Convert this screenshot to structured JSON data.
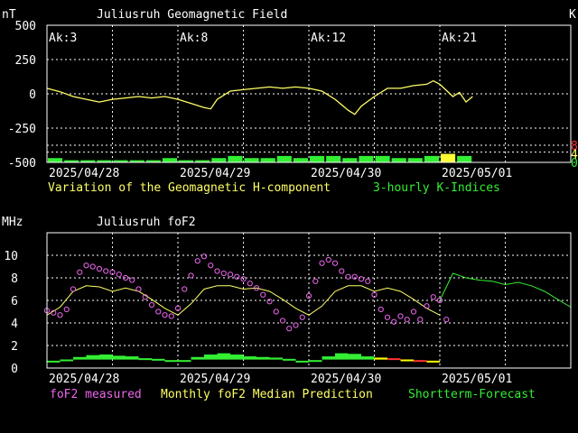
{
  "colors": {
    "background": "#000000",
    "frame": "#ffffff",
    "grid": "#ffffff",
    "h_component": "#ffff66",
    "k_normal": "#33ee33",
    "k_yellow": "#ffff33",
    "k_scale_8": "#ff3333",
    "k_scale_4": "#ffff66",
    "k_scale_0": "#33ee33",
    "fof2_measured": "#ee66ee",
    "median": "#ffff66",
    "forecast": "#33ee33",
    "quality_yellow": "#ffff00",
    "quality_red": "#ff3333"
  },
  "chart_data": [
    {
      "type": "line",
      "title": "Juliusruh Geomagnetic Field",
      "ylabel": "nT",
      "ylim": [
        -500,
        500
      ],
      "yticks": [
        "500",
        "250",
        "0",
        "-250",
        "-500"
      ],
      "y2ticks": [
        {
          "label": "8",
          "value": 8,
          "color": "#ff3333"
        },
        {
          "label": "4",
          "value": 4,
          "color": "#ffff66"
        },
        {
          "label": "0",
          "value": 0,
          "color": "#33ee33"
        }
      ],
      "y2_corner_label": "K",
      "xlim": [
        0,
        4
      ],
      "xticks": [
        {
          "label": "2025/04/28",
          "x": 0
        },
        {
          "label": "2025/04/29",
          "x": 1
        },
        {
          "label": "2025/04/30",
          "x": 2
        },
        {
          "label": "2025/05/01",
          "x": 3
        }
      ],
      "ak": [
        {
          "label": "Ak:3",
          "x": 0
        },
        {
          "label": "Ak:8",
          "x": 1
        },
        {
          "label": "Ak:12",
          "x": 2
        },
        {
          "label": "Ak:21",
          "x": 3
        }
      ],
      "legend": [
        {
          "text": "Variation of the Geomagnetic H-component",
          "color": "#ffff66"
        },
        {
          "text": "3-hourly K-Indices",
          "color": "#33ee33"
        }
      ],
      "series": [
        {
          "name": "Variation of the Geomagnetic H-component",
          "x": [
            0.0,
            0.1,
            0.2,
            0.3,
            0.4,
            0.5,
            0.6,
            0.7,
            0.8,
            0.9,
            1.0,
            1.1,
            1.2,
            1.25,
            1.3,
            1.4,
            1.5,
            1.6,
            1.7,
            1.8,
            1.9,
            2.0,
            2.1,
            2.2,
            2.3,
            2.35,
            2.4,
            2.5,
            2.6,
            2.7,
            2.8,
            2.9,
            2.95,
            3.0,
            3.1,
            3.15,
            3.2,
            3.25
          ],
          "y": [
            40,
            15,
            -20,
            -40,
            -60,
            -40,
            -30,
            -20,
            -30,
            -20,
            -40,
            -70,
            -100,
            -110,
            -40,
            20,
            30,
            40,
            50,
            40,
            50,
            40,
            20,
            -40,
            -120,
            -150,
            -90,
            -20,
            40,
            40,
            60,
            70,
            95,
            70,
            -20,
            10,
            -60,
            -20
          ]
        }
      ],
      "k_indices": {
        "x": [
          0.0,
          0.125,
          0.25,
          0.375,
          0.5,
          0.625,
          0.75,
          0.875,
          1.0,
          1.125,
          1.25,
          1.375,
          1.5,
          1.625,
          1.75,
          1.875,
          2.0,
          2.125,
          2.25,
          2.375,
          2.5,
          2.625,
          2.75,
          2.875,
          3.0,
          3.125,
          3.25,
          3.375,
          3.5,
          3.625,
          3.75,
          3.875
        ],
        "values": [
          2,
          1,
          1,
          1,
          1,
          1,
          1,
          2,
          1,
          1,
          2,
          3,
          2,
          2,
          3,
          2,
          3,
          3,
          2,
          3,
          3,
          2,
          2,
          3,
          4,
          3,
          0,
          0,
          0,
          0,
          0,
          0
        ],
        "colors": [
          "g",
          "g",
          "g",
          "g",
          "g",
          "g",
          "g",
          "g",
          "g",
          "g",
          "g",
          "g",
          "g",
          "g",
          "g",
          "g",
          "g",
          "g",
          "g",
          "g",
          "g",
          "g",
          "g",
          "g",
          "y",
          "g",
          "g",
          "g",
          "g",
          "g",
          "g",
          "g"
        ]
      }
    },
    {
      "type": "line",
      "title": "Juliusruh foF2",
      "ylabel": "MHz",
      "ylim": [
        0,
        12
      ],
      "yticks": [
        "10",
        "8",
        "6",
        "4",
        "2",
        "0"
      ],
      "xlim": [
        0,
        4
      ],
      "xticks": [
        {
          "label": "2025/04/28",
          "x": 0
        },
        {
          "label": "2025/04/29",
          "x": 1
        },
        {
          "label": "2025/04/30",
          "x": 2
        },
        {
          "label": "2025/05/01",
          "x": 3
        }
      ],
      "legend": [
        {
          "text": "foF2 measured",
          "color": "#ee66ee"
        },
        {
          "text": "Monthly foF2 Median Prediction",
          "color": "#ffff66"
        },
        {
          "text": "Shortterm-Forecast",
          "color": "#33ee33"
        }
      ],
      "series": [
        {
          "name": "foF2 measured",
          "x": [
            0.0,
            0.05,
            0.1,
            0.15,
            0.2,
            0.25,
            0.3,
            0.35,
            0.4,
            0.45,
            0.5,
            0.55,
            0.6,
            0.65,
            0.7,
            0.75,
            0.8,
            0.85,
            0.9,
            0.95,
            1.0,
            1.05,
            1.1,
            1.15,
            1.2,
            1.25,
            1.3,
            1.35,
            1.4,
            1.45,
            1.5,
            1.55,
            1.6,
            1.65,
            1.7,
            1.75,
            1.8,
            1.85,
            1.9,
            1.95,
            2.0,
            2.05,
            2.1,
            2.15,
            2.2,
            2.25,
            2.3,
            2.35,
            2.4,
            2.45,
            2.5,
            2.55,
            2.6,
            2.65,
            2.7,
            2.75,
            2.8,
            2.85,
            2.9,
            2.95,
            3.0,
            3.05
          ],
          "y": [
            5.1,
            4.9,
            4.7,
            5.2,
            7.0,
            8.5,
            9.1,
            9.0,
            8.8,
            8.6,
            8.5,
            8.3,
            8.0,
            7.8,
            7.0,
            6.3,
            5.6,
            5.0,
            4.7,
            4.6,
            5.3,
            7.0,
            8.2,
            9.5,
            9.9,
            9.1,
            8.6,
            8.4,
            8.3,
            8.1,
            7.9,
            7.5,
            7.1,
            6.5,
            5.9,
            5.0,
            4.2,
            3.5,
            3.8,
            4.5,
            6.4,
            7.7,
            9.3,
            9.6,
            9.3,
            8.6,
            8.1,
            8.1,
            7.9,
            7.7,
            6.5,
            5.2,
            4.5,
            4.1,
            4.6,
            4.3,
            5.0,
            4.3,
            5.5,
            6.3,
            6.0,
            4.3
          ]
        },
        {
          "name": "Monthly foF2 Median Prediction",
          "x": [
            0.0,
            0.1,
            0.2,
            0.3,
            0.4,
            0.5,
            0.6,
            0.7,
            0.8,
            0.9,
            1.0,
            1.1,
            1.2,
            1.3,
            1.4,
            1.5,
            1.6,
            1.7,
            1.8,
            1.9,
            2.0,
            2.1,
            2.2,
            2.3,
            2.4,
            2.5,
            2.6,
            2.7,
            2.8,
            2.9,
            3.0
          ],
          "y": [
            4.7,
            5.4,
            6.8,
            7.3,
            7.2,
            6.8,
            7.1,
            6.8,
            6.1,
            5.3,
            4.7,
            5.7,
            7.0,
            7.3,
            7.3,
            7.0,
            7.1,
            6.8,
            6.1,
            5.3,
            4.7,
            5.5,
            6.8,
            7.3,
            7.3,
            6.8,
            7.1,
            6.8,
            6.1,
            5.3,
            4.7
          ]
        },
        {
          "name": "Shortterm-Forecast",
          "x": [
            3.0,
            3.1,
            3.2,
            3.3,
            3.4,
            3.5,
            3.6,
            3.7,
            3.8,
            3.9,
            4.0
          ],
          "y": [
            6.0,
            8.4,
            8.0,
            7.8,
            7.7,
            7.4,
            7.6,
            7.3,
            6.8,
            6.1,
            5.4
          ]
        }
      ],
      "quality_bars": {
        "x": [
          0.0,
          0.1,
          0.2,
          0.3,
          0.4,
          0.5,
          0.6,
          0.7,
          0.8,
          0.9,
          1.0,
          1.1,
          1.2,
          1.3,
          1.4,
          1.5,
          1.6,
          1.7,
          1.8,
          1.9,
          2.0,
          2.1,
          2.2,
          2.3,
          2.4,
          2.5,
          2.6,
          2.7,
          2.8,
          2.9,
          3.0
        ],
        "values": [
          0.3,
          0.5,
          0.9,
          1.2,
          1.3,
          1.1,
          1.0,
          0.7,
          0.6,
          0.4,
          0.4,
          0.9,
          1.3,
          1.5,
          1.3,
          1.0,
          0.9,
          0.8,
          0.6,
          0.3,
          0.4,
          1.0,
          1.5,
          1.4,
          1.0,
          0.8,
          0.7,
          0.5,
          0.4,
          0.3,
          0.0
        ],
        "colors": [
          "g",
          "g",
          "g",
          "g",
          "g",
          "g",
          "g",
          "g",
          "g",
          "g",
          "g",
          "g",
          "g",
          "g",
          "g",
          "g",
          "g",
          "g",
          "g",
          "g",
          "g",
          "g",
          "g",
          "g",
          "g",
          "y",
          "r",
          "y",
          "r",
          "y",
          "g"
        ]
      }
    }
  ]
}
